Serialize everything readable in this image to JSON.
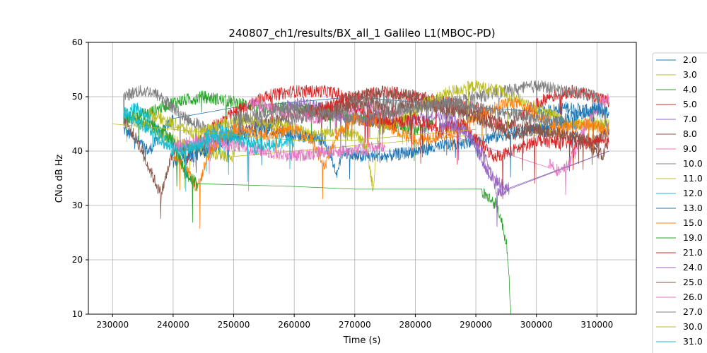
{
  "chart_data": {
    "type": "line",
    "title": "240807_ch1/results/BX_all_1 Galileo L1(MBOC-PD)",
    "xlabel": "Time (s)",
    "ylabel": "CNo dB Hz",
    "xlim": [
      226000,
      316500
    ],
    "ylim": [
      10,
      60
    ],
    "xticks": [
      230000,
      240000,
      250000,
      260000,
      270000,
      280000,
      290000,
      300000,
      310000
    ],
    "yticks": [
      10,
      20,
      30,
      40,
      50,
      60
    ],
    "grid": true,
    "legend_position": "right-outside",
    "series": [
      {
        "name": "2.0",
        "color": "#1f77b4",
        "values": [
          [
            231800,
            44
          ],
          [
            236000,
            40
          ],
          [
            240000,
            46
          ],
          [
            250000,
            48
          ],
          [
            260000,
            49
          ],
          [
            270000,
            50
          ],
          [
            280000,
            49
          ],
          [
            290000,
            48
          ],
          [
            300000,
            47
          ],
          [
            305000,
            48
          ],
          [
            312000,
            47
          ]
        ]
      },
      {
        "name": "3.0",
        "color": "#bcbd22",
        "values": [
          [
            231800,
            47
          ],
          [
            235000,
            45
          ],
          [
            240000,
            42
          ],
          [
            245000,
            40
          ],
          [
            250000,
            39
          ],
          [
            260000,
            40
          ],
          [
            270000,
            41
          ],
          [
            280000,
            42
          ],
          [
            290000,
            43
          ],
          [
            300000,
            44
          ],
          [
            305000,
            45
          ],
          [
            312000,
            45
          ]
        ]
      },
      {
        "name": "4.0",
        "color": "#2ca02c",
        "values": [
          [
            231800,
            46
          ],
          [
            236000,
            47
          ],
          [
            240000,
            49
          ],
          [
            245000,
            50
          ],
          [
            250000,
            49
          ],
          [
            255000,
            48
          ],
          [
            260000,
            48
          ],
          [
            265000,
            47
          ],
          [
            270000,
            46
          ],
          [
            275000,
            45
          ],
          [
            280000,
            44
          ],
          [
            283000,
            45
          ]
        ]
      },
      {
        "name": "5.0",
        "color": "#d62728",
        "values": [
          [
            242000,
            38
          ],
          [
            246000,
            44
          ],
          [
            250000,
            47
          ],
          [
            255000,
            50
          ],
          [
            260000,
            51
          ],
          [
            265000,
            51
          ],
          [
            270000,
            50
          ],
          [
            275000,
            51
          ],
          [
            280000,
            50
          ],
          [
            285000,
            49
          ],
          [
            290000,
            48
          ],
          [
            295000,
            44
          ],
          [
            298000,
            47
          ],
          [
            302000,
            50
          ],
          [
            306000,
            51
          ],
          [
            310000,
            50
          ],
          [
            312000,
            49
          ]
        ]
      },
      {
        "name": "7.0",
        "color": "#9467bd",
        "values": [
          [
            258000,
            48
          ],
          [
            262000,
            49
          ],
          [
            266000,
            47
          ],
          [
            270000,
            46
          ],
          [
            275000,
            45
          ],
          [
            280000,
            46
          ],
          [
            285000,
            47
          ],
          [
            289000,
            43
          ],
          [
            292000,
            36
          ],
          [
            294000,
            34
          ],
          [
            295500,
            33
          ],
          [
            312000,
            40
          ]
        ]
      },
      {
        "name": "8.0",
        "color": "#8c564b",
        "values": [
          [
            231800,
            46
          ],
          [
            234000,
            42
          ],
          [
            236000,
            37
          ],
          [
            238000,
            32
          ],
          [
            240000,
            40
          ],
          [
            245000,
            41
          ],
          [
            250000,
            43
          ],
          [
            255000,
            45
          ],
          [
            260000,
            47
          ],
          [
            265000,
            48
          ],
          [
            270000,
            50
          ],
          [
            275000,
            51
          ],
          [
            280000,
            50
          ],
          [
            285000,
            48
          ],
          [
            290000,
            47
          ],
          [
            295000,
            45
          ],
          [
            300000,
            44
          ],
          [
            305000,
            43
          ],
          [
            310000,
            42
          ],
          [
            312000,
            44
          ]
        ]
      },
      {
        "name": "9.0",
        "color": "#e377c2",
        "values": [
          [
            252000,
            49
          ],
          [
            256000,
            48
          ],
          [
            260000,
            47
          ],
          [
            264000,
            46
          ],
          [
            268000,
            47
          ],
          [
            272000,
            48
          ],
          [
            276000,
            47
          ],
          [
            280000,
            45
          ],
          [
            302000,
            38
          ],
          [
            304000,
            36
          ],
          [
            305000,
            37
          ],
          [
            308000,
            44
          ],
          [
            310000,
            48
          ],
          [
            312000,
            50
          ]
        ]
      },
      {
        "name": "10.0",
        "color": "#7f7f7f",
        "values": [
          [
            231800,
            50
          ],
          [
            234000,
            51
          ],
          [
            236000,
            51
          ],
          [
            238000,
            50
          ],
          [
            240000,
            48
          ],
          [
            242000,
            46
          ],
          [
            244000,
            45
          ],
          [
            246000,
            44
          ],
          [
            248000,
            43
          ],
          [
            250000,
            44
          ],
          [
            252000,
            46
          ],
          [
            255000,
            45
          ],
          [
            260000,
            46
          ],
          [
            265000,
            47
          ],
          [
            270000,
            49
          ],
          [
            275000,
            49
          ],
          [
            280000,
            48
          ],
          [
            285000,
            49
          ],
          [
            290000,
            50
          ],
          [
            295000,
            51
          ],
          [
            300000,
            52
          ],
          [
            305000,
            51
          ],
          [
            310000,
            50
          ],
          [
            312000,
            44
          ]
        ]
      },
      {
        "name": "11.0",
        "color": "#bcbd22",
        "values": [
          [
            236000,
            47
          ],
          [
            240000,
            45
          ],
          [
            244000,
            43
          ],
          [
            248000,
            45
          ],
          [
            252000,
            46
          ],
          [
            256000,
            45
          ],
          [
            260000,
            44
          ],
          [
            264000,
            43
          ],
          [
            267000,
            44
          ],
          [
            270000,
            43
          ],
          [
            272000,
            41
          ],
          [
            273000,
            33
          ],
          [
            274000,
            44
          ],
          [
            278000,
            46
          ],
          [
            282000,
            49
          ],
          [
            286000,
            51
          ],
          [
            290000,
            52
          ],
          [
            294000,
            51
          ],
          [
            298000,
            49
          ],
          [
            302000,
            47
          ],
          [
            305000,
            45
          ]
        ]
      },
      {
        "name": "12.0",
        "color": "#17becf",
        "values": [
          [
            231800,
            47
          ],
          [
            234000,
            48
          ],
          [
            236000,
            46
          ],
          [
            238000,
            43
          ],
          [
            240000,
            41
          ],
          [
            242000,
            40
          ],
          [
            244000,
            41
          ],
          [
            246000,
            43
          ],
          [
            248000,
            44
          ],
          [
            250000,
            43
          ],
          [
            252000,
            42
          ],
          [
            254000,
            40
          ]
        ]
      },
      {
        "name": "13.0",
        "color": "#1f77b4",
        "values": [
          [
            240000,
            38
          ],
          [
            246000,
            40
          ],
          [
            250000,
            43
          ],
          [
            255000,
            44
          ],
          [
            260000,
            43
          ],
          [
            265000,
            42
          ],
          [
            267000,
            36
          ],
          [
            268000,
            40
          ],
          [
            270000,
            39
          ],
          [
            275000,
            39
          ],
          [
            280000,
            40
          ],
          [
            285000,
            41
          ],
          [
            290000,
            42
          ],
          [
            295000,
            43
          ],
          [
            300000,
            44
          ],
          [
            305000,
            46
          ],
          [
            310000,
            48
          ],
          [
            312000,
            47
          ]
        ]
      },
      {
        "name": "15.0",
        "color": "#ff7f0e",
        "values": [
          [
            240000,
            39
          ],
          [
            242000,
            37
          ],
          [
            244000,
            33
          ],
          [
            246000,
            40
          ],
          [
            250000,
            44
          ],
          [
            255000,
            43
          ],
          [
            260000,
            44
          ],
          [
            263000,
            42
          ],
          [
            265000,
            37
          ],
          [
            267000,
            43
          ],
          [
            270000,
            46
          ],
          [
            275000,
            45
          ],
          [
            280000,
            42
          ],
          [
            285000,
            43
          ],
          [
            290000,
            46
          ],
          [
            293000,
            48
          ],
          [
            296000,
            49
          ],
          [
            300000,
            47
          ],
          [
            304000,
            44
          ],
          [
            308000,
            45
          ],
          [
            312000,
            44
          ]
        ]
      },
      {
        "name": "19.0",
        "color": "#2ca02c",
        "values": [
          [
            234000,
            46
          ],
          [
            238000,
            44
          ],
          [
            240000,
            42
          ],
          [
            242000,
            36
          ],
          [
            244000,
            34
          ],
          [
            260000,
            33.5
          ],
          [
            270000,
            33
          ],
          [
            280000,
            33
          ],
          [
            291000,
            32.5
          ],
          [
            292500,
            31
          ],
          [
            293500,
            30
          ],
          [
            294500,
            26
          ],
          [
            295200,
            22
          ],
          [
            295500,
            16
          ],
          [
            295800,
            10
          ]
        ]
      },
      {
        "name": "21.0",
        "color": "#d62728",
        "values": [
          [
            262000,
            47
          ],
          [
            268000,
            49
          ],
          [
            272000,
            47
          ],
          [
            276000,
            45
          ],
          [
            280000,
            46
          ],
          [
            284000,
            44
          ],
          [
            288000,
            45
          ],
          [
            290000,
            42
          ],
          [
            293000,
            39
          ],
          [
            296000,
            40
          ],
          [
            300000,
            42
          ],
          [
            305000,
            41.5
          ],
          [
            312000,
            41.5
          ]
        ]
      },
      {
        "name": "24.0",
        "color": "#9467bd",
        "values": [
          [
            284000,
            45
          ],
          [
            288000,
            44
          ],
          [
            291000,
            40
          ],
          [
            292500,
            36
          ],
          [
            293500,
            32
          ],
          [
            295000,
            33
          ],
          [
            312000,
            40
          ]
        ]
      },
      {
        "name": "25.0",
        "color": "#8c564b",
        "values": [
          [
            264000,
            46
          ],
          [
            268000,
            48
          ],
          [
            272000,
            49
          ],
          [
            276000,
            47
          ],
          [
            280000,
            49
          ],
          [
            284000,
            48
          ],
          [
            288000,
            47
          ],
          [
            292000,
            45
          ],
          [
            296000,
            43
          ],
          [
            300000,
            44
          ],
          [
            304000,
            43
          ],
          [
            308000,
            42
          ],
          [
            311000,
            39
          ],
          [
            312000,
            43
          ]
        ]
      },
      {
        "name": "26.0",
        "color": "#e377c2",
        "values": [
          [
            240000,
            41
          ],
          [
            245000,
            42
          ],
          [
            250000,
            41
          ],
          [
            255000,
            40
          ],
          [
            260000,
            39
          ],
          [
            265000,
            40
          ],
          [
            270000,
            40
          ],
          [
            275000,
            41
          ]
        ]
      },
      {
        "name": "27.0",
        "color": "#7f7f7f",
        "values": [
          [
            250000,
            46
          ],
          [
            255000,
            47
          ],
          [
            260000,
            48
          ],
          [
            265000,
            47
          ],
          [
            270000,
            46
          ],
          [
            275000,
            47
          ],
          [
            280000,
            48
          ],
          [
            285000,
            49
          ],
          [
            290000,
            48
          ],
          [
            295000,
            47
          ],
          [
            300000,
            46
          ],
          [
            305000,
            45
          ]
        ]
      },
      {
        "name": "30.0",
        "color": "#bcbd22",
        "values": [
          [
            230000,
            45
          ],
          [
            240000,
            44
          ],
          [
            250000,
            43
          ],
          [
            260000,
            42
          ],
          [
            270000,
            42
          ],
          [
            280000,
            43
          ],
          [
            290000,
            44
          ]
        ]
      },
      {
        "name": "31.0",
        "color": "#17becf",
        "values": [
          [
            232000,
            47
          ],
          [
            236000,
            44
          ],
          [
            240000,
            40
          ],
          [
            244000,
            41
          ],
          [
            248000,
            43
          ],
          [
            252000,
            42
          ],
          [
            256000,
            41
          ],
          [
            260000,
            42
          ]
        ]
      }
    ]
  }
}
